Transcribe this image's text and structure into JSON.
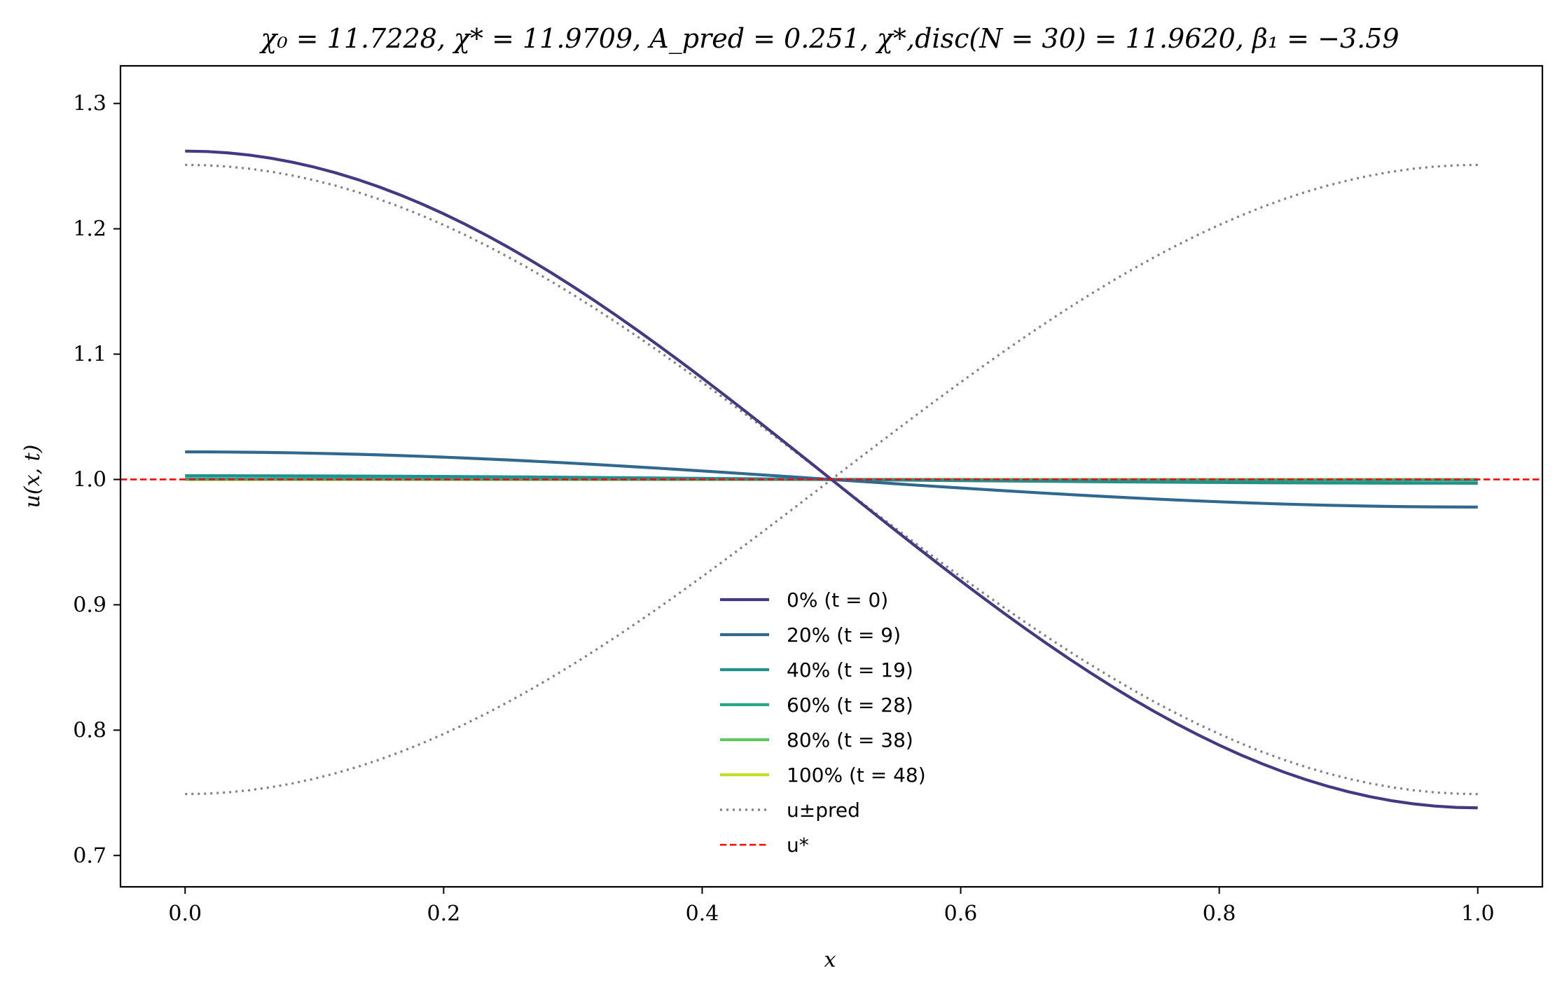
{
  "chart_data": {
    "type": "line",
    "title": "χ₀ = 11.7228,  χ* = 11.9709,  A_pred = 0.251,  χ*,disc(N = 30) = 11.9620,  β₁ = −3.59",
    "xlabel": "x",
    "ylabel": "u(x, t)",
    "xlim": [
      -0.05,
      1.05
    ],
    "ylim": [
      0.675,
      1.33
    ],
    "xticks": [
      "0.0",
      "0.2",
      "0.4",
      "0.6",
      "0.8",
      "1.0"
    ],
    "yticks": [
      "0.7",
      "0.8",
      "0.9",
      "1.0",
      "1.1",
      "1.2",
      "1.3"
    ],
    "grid": false,
    "legend_position": "lower-center",
    "series": [
      {
        "name": "0% (t = 0)",
        "color": "#443983",
        "amplitude": 0.262,
        "style": "solid"
      },
      {
        "name": "20% (t = 9)",
        "color": "#31688e",
        "amplitude": 0.022,
        "style": "solid"
      },
      {
        "name": "40% (t = 19)",
        "color": "#21918c",
        "amplitude": 0.003,
        "style": "solid"
      },
      {
        "name": "60% (t = 28)",
        "color": "#22a884",
        "amplitude": 0.0005,
        "style": "solid"
      },
      {
        "name": "80% (t = 38)",
        "color": "#5ec962",
        "amplitude": 0.0001,
        "style": "solid"
      },
      {
        "name": "100% (t = 48)",
        "color": "#bddf26",
        "amplitude": 0.0,
        "style": "solid"
      }
    ],
    "reference_curves": [
      {
        "name": "u±pred",
        "color": "#808080",
        "style": "dotted",
        "amplitude": 0.251
      },
      {
        "name": "u*",
        "color": "#ff0000",
        "style": "dashed",
        "value": 1.0
      }
    ]
  }
}
